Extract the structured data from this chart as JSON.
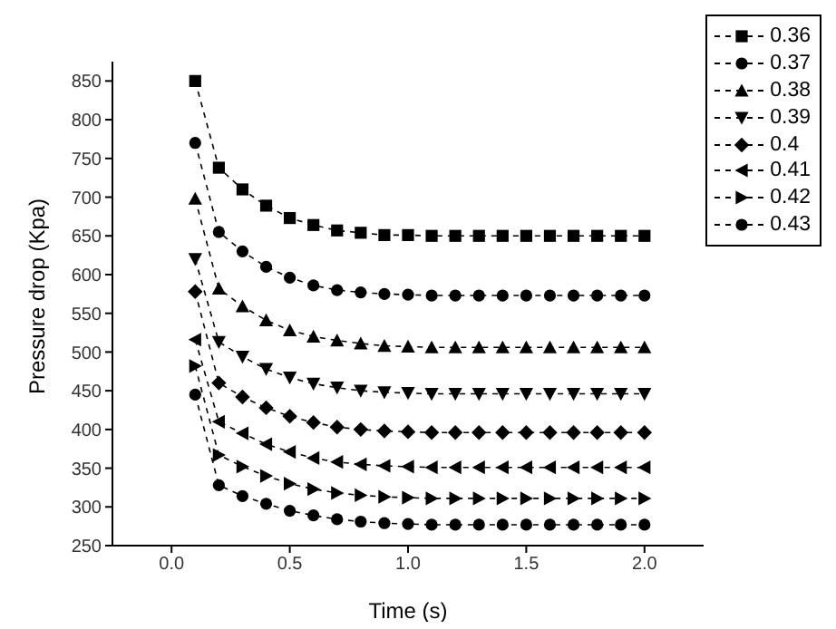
{
  "chart_data": {
    "type": "line",
    "xlabel": "Time (s)",
    "ylabel": "Pressure drop (Kpa)",
    "x": [
      0.1,
      0.2,
      0.3,
      0.4,
      0.5,
      0.6,
      0.7,
      0.8,
      0.9,
      1.0,
      1.1,
      1.2,
      1.3,
      1.4,
      1.5,
      1.6,
      1.7,
      1.8,
      1.9,
      2.0
    ],
    "series": [
      {
        "name": "0.36",
        "color": "#000000",
        "marker": "square",
        "values": [
          850,
          738,
          710,
          689,
          673,
          664,
          657,
          654,
          651,
          651,
          650,
          650,
          650,
          650,
          650,
          650,
          650,
          650,
          650,
          650
        ]
      },
      {
        "name": "0.37",
        "color": "#000000",
        "marker": "circle",
        "values": [
          770,
          655,
          630,
          610,
          596,
          586,
          580,
          577,
          575,
          574,
          573,
          573,
          573,
          573,
          573,
          573,
          573,
          573,
          573,
          573
        ]
      },
      {
        "name": "0.38",
        "color": "#000000",
        "marker": "triangle",
        "values": [
          698,
          582,
          559,
          541,
          528,
          520,
          515,
          511,
          508,
          507,
          506,
          506,
          506,
          506,
          506,
          506,
          506,
          506,
          506,
          506
        ]
      },
      {
        "name": "0.39",
        "color": "#000000",
        "marker": "triangle-down",
        "values": [
          620,
          513,
          494,
          478,
          467,
          459,
          454,
          450,
          448,
          447,
          446,
          446,
          446,
          446,
          446,
          446,
          446,
          446,
          446,
          446
        ]
      },
      {
        "name": "0.4",
        "color": "#000000",
        "marker": "diamond",
        "values": [
          578,
          460,
          442,
          428,
          417,
          409,
          403,
          400,
          398,
          397,
          396,
          396,
          396,
          396,
          396,
          396,
          396,
          396,
          396,
          396
        ]
      },
      {
        "name": "0.41",
        "color": "#000000",
        "marker": "triangle-left",
        "values": [
          516,
          410,
          395,
          381,
          371,
          363,
          358,
          355,
          353,
          352,
          351,
          351,
          351,
          351,
          351,
          351,
          351,
          351,
          351,
          351
        ]
      },
      {
        "name": "0.42",
        "color": "#000000",
        "marker": "triangle-right",
        "values": [
          482,
          367,
          352,
          340,
          330,
          323,
          318,
          315,
          313,
          312,
          311,
          311,
          311,
          311,
          311,
          311,
          311,
          311,
          311,
          311
        ]
      },
      {
        "name": "0.43",
        "color": "#000000",
        "marker": "circle",
        "values": [
          445,
          328,
          314,
          304,
          295,
          289,
          284,
          281,
          279,
          278,
          277,
          277,
          277,
          277,
          277,
          277,
          277,
          277,
          277,
          277
        ]
      }
    ],
    "xlim": [
      -0.25,
      2.25
    ],
    "xticks": [
      {
        "value": 0,
        "label": "0.0"
      },
      0.5,
      {
        "value": 1,
        "label": "1.0"
      },
      1.5,
      {
        "value": 2,
        "label": "2.0"
      }
    ],
    "ylim": [
      250,
      875
    ],
    "yticks": [
      250,
      300,
      350,
      400,
      450,
      500,
      550,
      600,
      650,
      700,
      750,
      800,
      850
    ],
    "grid": false,
    "legend": "top right",
    "line_style": "dashed"
  }
}
